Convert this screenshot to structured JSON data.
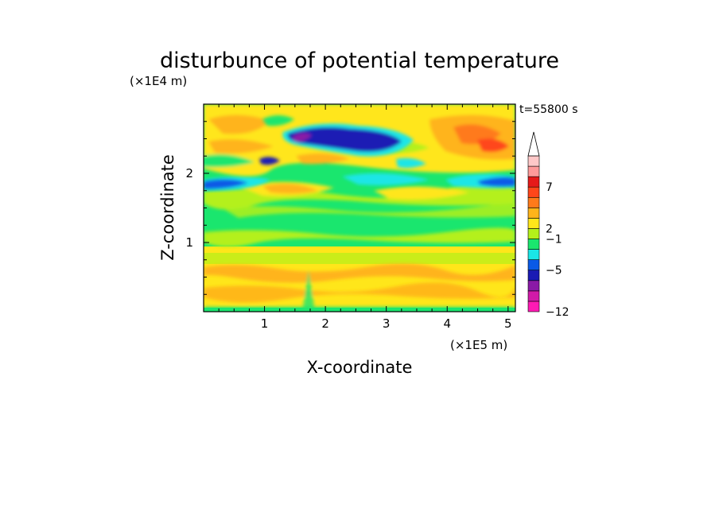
{
  "chart_data": {
    "type": "heatmap",
    "title": "disturbunce of potential temperature",
    "time_label": "t=55800 s",
    "xlabel": "X-coordinate",
    "ylabel": "Z-coordinate",
    "x_unit": "(×1E5 m)",
    "y_unit": "(×1E4 m)",
    "xlim": [
      0,
      5.12
    ],
    "ylim": [
      0,
      3.0
    ],
    "x_ticks": [
      "1",
      "2",
      "3",
      "4",
      "5"
    ],
    "y_ticks": [
      "1",
      "2"
    ],
    "colorbar": {
      "colors": [
        "#ff1ab4",
        "#d11aa8",
        "#8a1aa6",
        "#1a1ab4",
        "#0a5ae6",
        "#1ae6e6",
        "#1ae66e",
        "#b4f01a",
        "#ffe61a",
        "#ffb41a",
        "#ff7a1a",
        "#ff461a",
        "#e61a1a",
        "#ff9a9a",
        "#ffc8c8"
      ],
      "tick_labels": [
        "-12",
        "-5",
        "-1",
        "2",
        "7"
      ],
      "extend": "max"
    },
    "field_bands": [
      {
        "z_from": 0.0,
        "z_to": 0.06,
        "dominant": "green"
      },
      {
        "z_from": 0.06,
        "z_to": 0.55,
        "dominant": "yellow with orange bands"
      },
      {
        "z_from": 0.55,
        "z_to": 0.9,
        "dominant": "yellow-green"
      },
      {
        "z_from": 0.9,
        "z_to": 1.45,
        "dominant": "green"
      },
      {
        "z_from": 1.45,
        "z_to": 1.85,
        "dominant": "green/yellow with cyan patches"
      },
      {
        "z_from": 1.75,
        "z_to": 1.95,
        "dominant": "blue layer"
      },
      {
        "z_from": 1.95,
        "z_to": 3.0,
        "dominant": "yellow/orange with blue cells"
      }
    ],
    "extremes": [
      {
        "x": 1.6,
        "z": 2.55,
        "kind": "minimum (purple)"
      },
      {
        "x": 2.2,
        "z": 2.45,
        "kind": "negative (dark blue)"
      }
    ]
  }
}
